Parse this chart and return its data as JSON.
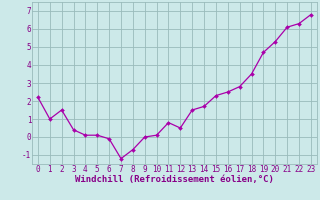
{
  "x": [
    0,
    1,
    2,
    3,
    4,
    5,
    6,
    7,
    8,
    9,
    10,
    11,
    12,
    13,
    14,
    15,
    16,
    17,
    18,
    19,
    20,
    21,
    22,
    23
  ],
  "y": [
    2.2,
    1.0,
    1.5,
    0.4,
    0.1,
    0.1,
    -0.1,
    -1.2,
    -0.7,
    0.0,
    0.1,
    0.8,
    0.5,
    1.5,
    1.7,
    2.3,
    2.5,
    2.8,
    3.5,
    4.7,
    5.3,
    6.1,
    6.3,
    6.8
  ],
  "line_color": "#aa00aa",
  "marker": "D",
  "marker_size": 2.0,
  "background_color": "#cce9e9",
  "grid_color": "#99bbbb",
  "xlabel": "Windchill (Refroidissement éolien,°C)",
  "xlabel_color": "#880088",
  "xlim": [
    -0.5,
    23.5
  ],
  "ylim": [
    -1.5,
    7.5
  ],
  "yticks": [
    -1,
    0,
    1,
    2,
    3,
    4,
    5,
    6,
    7
  ],
  "xticks": [
    0,
    1,
    2,
    3,
    4,
    5,
    6,
    7,
    8,
    9,
    10,
    11,
    12,
    13,
    14,
    15,
    16,
    17,
    18,
    19,
    20,
    21,
    22,
    23
  ],
  "tick_label_color": "#880088",
  "tick_label_fontsize": 5.5,
  "xlabel_fontsize": 6.5,
  "linewidth": 0.9
}
